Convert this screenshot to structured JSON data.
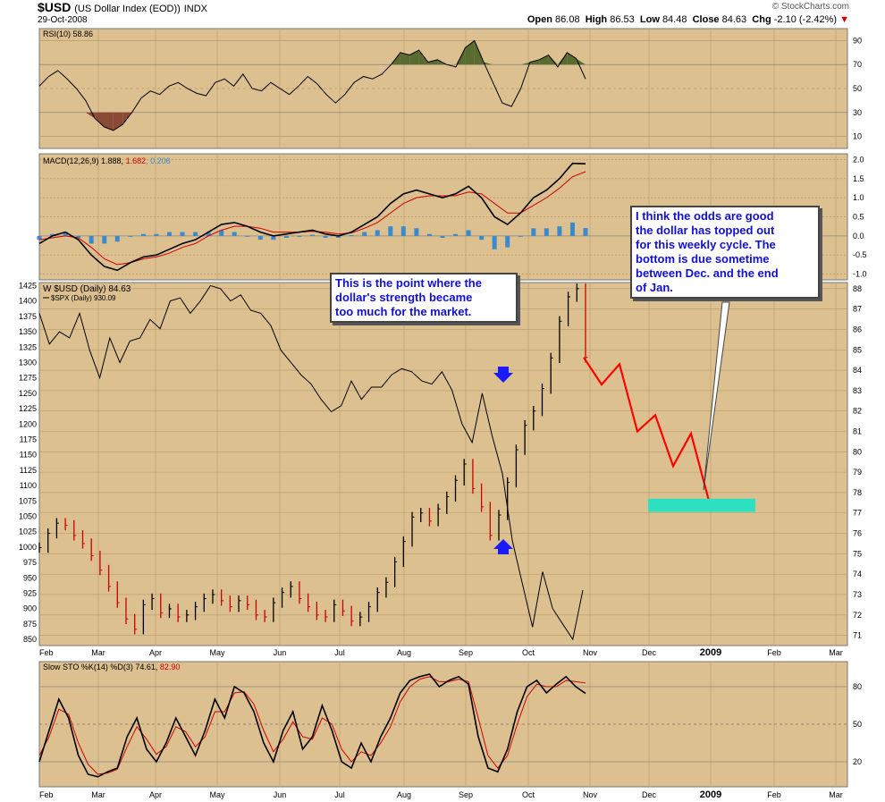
{
  "header": {
    "symbol": "$USD",
    "description": "(US Dollar Index (EOD))",
    "exchange": "INDX",
    "date": "29-Oct-2008",
    "watermark": "© StockCharts.com",
    "open_label": "Open",
    "open": "86.08",
    "high_label": "High",
    "high": "86.53",
    "low_label": "Low",
    "low": "84.48",
    "close_label": "Close",
    "close": "84.63",
    "chg_label": "Chg",
    "chg": "-2.10 (-2.42%)"
  },
  "annotations": {
    "left": [
      "This is the point where the",
      "dollar's strength became",
      "too much for the market."
    ],
    "right": [
      "I think the odds are good",
      "the dollar has topped out",
      "for this weekly cycle. The",
      "bottom is due sometime",
      "between Dec. and the end",
      "of Jan."
    ]
  },
  "colors": {
    "panel_bg": "#dcc090",
    "price_up": "#000000",
    "price_down": "#cc0000",
    "projection": "#ff0000",
    "target_zone": "#2de0c0",
    "arrow": "#1a1aff",
    "rsi_high_fill": "#5a6b2f",
    "rsi_low_fill": "#8b4a35",
    "macd_signal": "#cc0000",
    "macd_hist": "#3a8ad0"
  },
  "chart_data": [
    {
      "type": "line",
      "panel": "RSI",
      "title": "RSI(10) 58.86",
      "yticks": [
        10,
        30,
        50,
        70,
        90
      ],
      "ylim": [
        0,
        100
      ],
      "series": [
        {
          "name": "RSI(10)",
          "values": [
            52,
            60,
            65,
            58,
            50,
            40,
            25,
            18,
            15,
            20,
            30,
            42,
            48,
            45,
            52,
            55,
            50,
            46,
            44,
            55,
            58,
            52,
            62,
            50,
            48,
            55,
            50,
            45,
            52,
            60,
            54,
            45,
            38,
            45,
            55,
            60,
            58,
            62,
            70,
            80,
            78,
            82,
            72,
            74,
            70,
            68,
            84,
            90,
            72,
            55,
            38,
            35,
            50,
            72,
            74,
            78,
            68,
            80,
            75,
            58
          ]
        }
      ]
    },
    {
      "type": "line",
      "panel": "MACD",
      "title": "MACD(12,26,9)",
      "values_text": {
        "macd": "1.888",
        "signal": "1.682",
        "hist": "0.206"
      },
      "yticks": [
        -1.0,
        -0.5,
        0.0,
        0.5,
        1.0,
        1.5,
        2.0
      ],
      "ylim": [
        -1.15,
        2.15
      ],
      "series": [
        {
          "name": "MACD",
          "values": [
            -0.2,
            0.0,
            0.1,
            -0.1,
            -0.5,
            -0.8,
            -0.9,
            -0.7,
            -0.55,
            -0.5,
            -0.35,
            -0.2,
            -0.1,
            0.1,
            0.3,
            0.35,
            0.25,
            0.1,
            0.0,
            0.05,
            0.1,
            0.15,
            0.05,
            0.0,
            0.1,
            0.3,
            0.5,
            0.85,
            1.1,
            1.2,
            1.1,
            1.0,
            1.1,
            1.3,
            1.0,
            0.5,
            0.3,
            0.6,
            1.0,
            1.2,
            1.5,
            1.9,
            1.888
          ]
        },
        {
          "name": "Signal",
          "values": [
            -0.1,
            -0.05,
            0.0,
            -0.05,
            -0.3,
            -0.6,
            -0.75,
            -0.7,
            -0.6,
            -0.55,
            -0.45,
            -0.3,
            -0.2,
            0.0,
            0.15,
            0.25,
            0.25,
            0.2,
            0.1,
            0.1,
            0.1,
            0.12,
            0.1,
            0.05,
            0.08,
            0.2,
            0.35,
            0.6,
            0.85,
            1.0,
            1.05,
            1.05,
            1.05,
            1.15,
            1.1,
            0.85,
            0.6,
            0.6,
            0.8,
            1.0,
            1.25,
            1.55,
            1.682
          ]
        },
        {
          "name": "Histogram",
          "values": [
            -0.1,
            0.05,
            0.1,
            -0.05,
            -0.2,
            -0.2,
            -0.15,
            0.0,
            0.05,
            0.05,
            0.1,
            0.1,
            0.1,
            0.1,
            0.15,
            0.1,
            0.0,
            -0.1,
            -0.1,
            -0.05,
            0.0,
            0.03,
            -0.05,
            -0.05,
            0.02,
            0.1,
            0.15,
            0.25,
            0.25,
            0.2,
            0.05,
            -0.05,
            0.05,
            0.15,
            -0.1,
            -0.35,
            -0.3,
            0.0,
            0.2,
            0.2,
            0.25,
            0.35,
            0.206
          ]
        }
      ]
    },
    {
      "type": "line",
      "panel": "Price",
      "title": "$USD (Daily) 84.63",
      "title2": "$SPX (Daily) 930.09",
      "yticks_right": [
        71,
        72,
        73,
        74,
        75,
        76,
        77,
        78,
        79,
        80,
        81,
        82,
        83,
        84,
        85,
        86,
        87,
        88
      ],
      "ylim_right": [
        70.5,
        88.3
      ],
      "yticks_left": [
        850,
        875,
        900,
        925,
        950,
        975,
        1000,
        1025,
        1050,
        1075,
        1100,
        1125,
        1150,
        1175,
        1200,
        1225,
        1250,
        1275,
        1300,
        1325,
        1350,
        1375,
        1400,
        1425
      ],
      "ylim_left": [
        840,
        1430
      ],
      "series": [
        {
          "name": "$USD (Daily)",
          "values": [
            75.3,
            76.0,
            76.5,
            76.4,
            75.9,
            75.5,
            74.9,
            74.2,
            73.4,
            72.6,
            71.8,
            71.3,
            72.5,
            72.8,
            72.1,
            72.3,
            71.9,
            72.0,
            72.4,
            72.8,
            73.0,
            72.7,
            72.4,
            72.7,
            72.5,
            72.0,
            71.9,
            72.6,
            73.1,
            73.4,
            72.8,
            72.4,
            72.0,
            71.9,
            72.5,
            72.2,
            71.7,
            71.9,
            72.4,
            73.1,
            73.6,
            74.6,
            75.6,
            76.8,
            77.0,
            76.6,
            77.2,
            77.8,
            78.6,
            79.4,
            78.2,
            77.3,
            75.9,
            76.9,
            78.5,
            80.1,
            81.3,
            82.0,
            83.1,
            84.6,
            86.4,
            87.6,
            88.0,
            84.63
          ]
        },
        {
          "name": "$SPX (Daily)",
          "values": [
            1380,
            1330,
            1350,
            1340,
            1380,
            1320,
            1275,
            1340,
            1300,
            1335,
            1340,
            1370,
            1355,
            1400,
            1405,
            1380,
            1400,
            1425,
            1420,
            1400,
            1410,
            1385,
            1380,
            1360,
            1320,
            1300,
            1280,
            1265,
            1240,
            1220,
            1230,
            1270,
            1240,
            1260,
            1260,
            1280,
            1290,
            1285,
            1270,
            1265,
            1285,
            1255,
            1200,
            1170,
            1250,
            1180,
            1120,
            1010,
            940,
            870,
            960,
            900,
            875,
            850,
            930
          ]
        },
        {
          "name": "Projection",
          "values": [
            84.63,
            83.3,
            84.3,
            81.0,
            81.8,
            79.3,
            80.9,
            77.6
          ]
        }
      ]
    },
    {
      "type": "line",
      "panel": "Stochastic",
      "title": "Slow STO %K(14) %D(3)",
      "values_text": {
        "k": "74.61",
        "d": "82.90"
      },
      "yticks": [
        20,
        50,
        80
      ],
      "ylim": [
        0,
        100
      ],
      "series": [
        {
          "name": "%K",
          "values": [
            20,
            45,
            70,
            55,
            25,
            10,
            8,
            12,
            15,
            40,
            55,
            30,
            20,
            35,
            55,
            40,
            25,
            45,
            70,
            55,
            80,
            75,
            60,
            35,
            20,
            45,
            60,
            30,
            40,
            65,
            45,
            20,
            15,
            35,
            20,
            40,
            55,
            75,
            85,
            88,
            90,
            80,
            85,
            88,
            82,
            40,
            15,
            12,
            30,
            60,
            80,
            85,
            75,
            82,
            88,
            80,
            74.61
          ]
        },
        {
          "name": "%D",
          "values": [
            25,
            40,
            62,
            58,
            35,
            18,
            10,
            11,
            14,
            32,
            48,
            38,
            26,
            32,
            48,
            44,
            32,
            40,
            60,
            60,
            75,
            76,
            66,
            45,
            28,
            38,
            52,
            40,
            38,
            55,
            50,
            30,
            20,
            28,
            25,
            35,
            48,
            68,
            80,
            86,
            88,
            84,
            84,
            86,
            84,
            55,
            25,
            15,
            25,
            50,
            72,
            82,
            80,
            80,
            85,
            84,
            82.9
          ]
        }
      ]
    }
  ],
  "x_axis": {
    "labels": [
      "Feb",
      "Mar",
      "Apr",
      "May",
      "Jun",
      "Jul",
      "Aug",
      "Sep",
      "Oct",
      "Nov",
      "Dec",
      "2009",
      "Feb",
      "Mar"
    ],
    "bold_label": "2009"
  }
}
